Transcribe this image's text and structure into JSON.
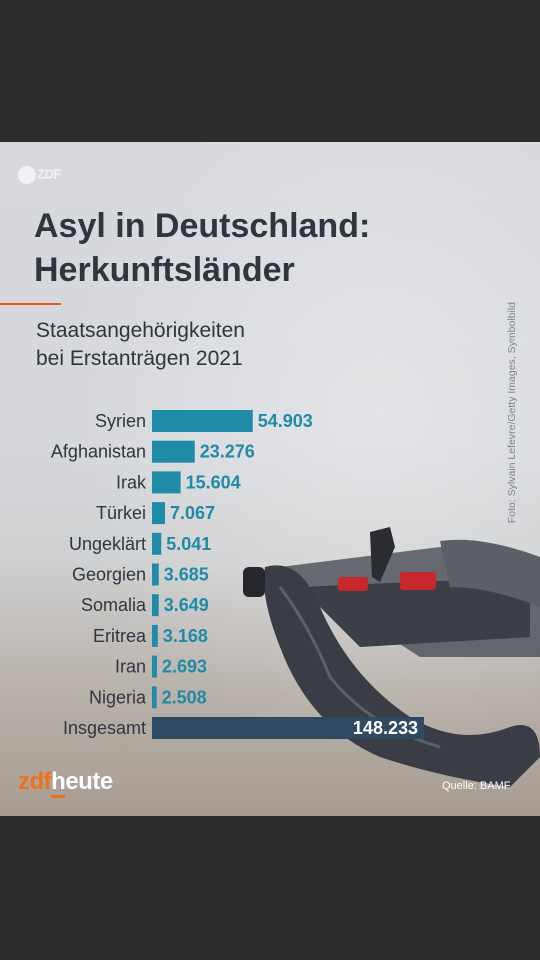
{
  "logo": "ZDF",
  "title_line1": "Asyl in Deutschland:",
  "title_line2": "Herkunftsländer",
  "subtitle_line1": "Staatsangehörigkeiten",
  "subtitle_line2": "bei Erstanträgen 2021",
  "photo_credit": "Foto: Sylvain Lefevre/Getty Images, Symbolbild",
  "brand_zdf": "zdf",
  "brand_heute": "heute",
  "source": "Quelle: BAMF",
  "colors": {
    "bar": "#1f8ba6",
    "value_text": "#1f8ba6",
    "total_bar": "#2e4a63",
    "label_text": "#2f3640",
    "accent": "#e85a17"
  },
  "chart_data": {
    "type": "bar",
    "orientation": "horizontal",
    "categories": [
      "Syrien",
      "Afghanistan",
      "Irak",
      "Türkei",
      "Ungeklärt",
      "Georgien",
      "Somalia",
      "Eritrea",
      "Iran",
      "Nigeria",
      "Insgesamt"
    ],
    "values": [
      54903,
      23276,
      15604,
      7067,
      5041,
      3685,
      3649,
      3168,
      2693,
      2508,
      148233
    ],
    "value_labels": [
      "54.903",
      "23.276",
      "15.604",
      "7.067",
      "5.041",
      "3.685",
      "3.649",
      "3.168",
      "2.693",
      "2.508",
      "148.233"
    ],
    "highlight_category": "Insgesamt",
    "title": "Asyl in Deutschland: Herkunftsländer",
    "subtitle": "Staatsangehörigkeiten bei Erstanträgen 2021",
    "xlabel": "",
    "ylabel": "",
    "xlim": [
      0,
      148233
    ],
    "grid": false,
    "legend": "none"
  }
}
